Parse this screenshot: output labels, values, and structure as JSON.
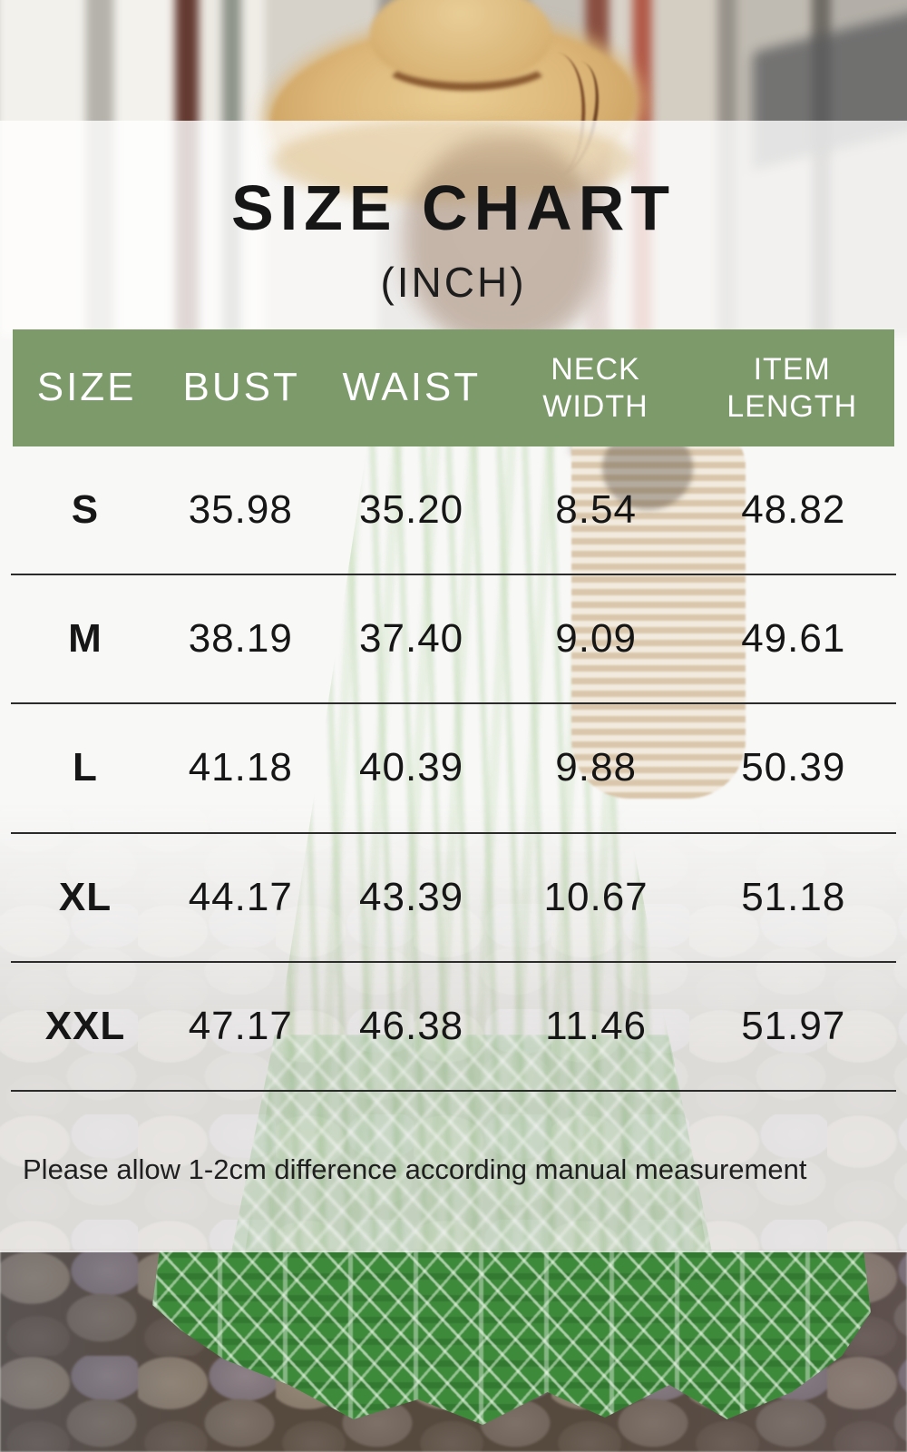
{
  "title": "SIZE CHART",
  "subtitle": "(INCH)",
  "table": {
    "columns": [
      {
        "label": "SIZE"
      },
      {
        "label": "BUST"
      },
      {
        "label": "WAIST"
      },
      {
        "label": "NECK\nWIDTH"
      },
      {
        "label": "ITEM\nLENGTH"
      }
    ],
    "rows": [
      {
        "size": "S",
        "bust": "35.98",
        "waist": "35.20",
        "neck_width": "8.54",
        "item_length": "48.82"
      },
      {
        "size": "M",
        "bust": "38.19",
        "waist": "37.40",
        "neck_width": "9.09",
        "item_length": "49.61"
      },
      {
        "size": "L",
        "bust": "41.18",
        "waist": "40.39",
        "neck_width": "9.88",
        "item_length": "50.39"
      },
      {
        "size": "XL",
        "bust": "44.17",
        "waist": "43.39",
        "neck_width": "10.67",
        "item_length": "51.18"
      },
      {
        "size": "XXL",
        "bust": "47.17",
        "waist": "46.38",
        "neck_width": "11.46",
        "item_length": "51.97"
      }
    ]
  },
  "note": "Please allow 1-2cm difference according manual measurement",
  "colors": {
    "header_background": "#7d9a6a",
    "header_text": "#ffffff",
    "body_text": "#161616",
    "divider": "#2b2b2b",
    "dress_hem_green": "#3e8a3b"
  },
  "chart_data": {
    "type": "table",
    "title": "SIZE CHART",
    "unit": "INCH",
    "columns": [
      "SIZE",
      "BUST",
      "WAIST",
      "NECK WIDTH",
      "ITEM LENGTH"
    ],
    "rows": [
      [
        "S",
        35.98,
        35.2,
        8.54,
        48.82
      ],
      [
        "M",
        38.19,
        37.4,
        9.09,
        49.61
      ],
      [
        "L",
        41.18,
        40.39,
        9.88,
        50.39
      ],
      [
        "XL",
        44.17,
        43.39,
        10.67,
        51.18
      ],
      [
        "XXL",
        47.17,
        46.38,
        11.46,
        51.97
      ]
    ],
    "note": "Please allow 1-2cm difference according manual measurement"
  }
}
